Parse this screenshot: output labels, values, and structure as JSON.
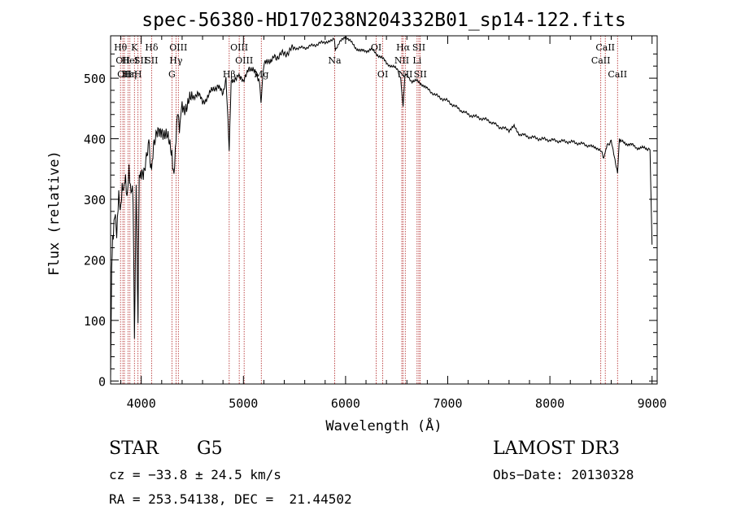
{
  "chart_data": {
    "type": "line",
    "title": "spec-56380-HD170238N204332B01_sp14-122.fits",
    "xlabel": "Wavelength (Å)",
    "ylabel": "Flux (relative)",
    "xlim": [
      3700,
      9050
    ],
    "ylim": [
      -5,
      570
    ],
    "x_ticks": [
      4000,
      5000,
      6000,
      7000,
      8000,
      9000
    ],
    "y_ticks": [
      0,
      100,
      200,
      300,
      400,
      500
    ],
    "grid": false,
    "series": [
      {
        "x": [
          3700,
          3710,
          3720,
          3740,
          3760,
          3780,
          3800,
          3820,
          3840,
          3860,
          3880,
          3900,
          3920,
          3933,
          3950,
          3968,
          3980,
          4000,
          4020,
          4050,
          4080,
          4101,
          4120,
          4150,
          4200,
          4250,
          4300,
          4320,
          4340,
          4360,
          4380,
          4400,
          4450,
          4500,
          4550,
          4600,
          4650,
          4700,
          4750,
          4800,
          4830,
          4861,
          4880,
          4900,
          4950,
          5000,
          5050,
          5100,
          5150,
          5172,
          5200,
          5250,
          5300,
          5400,
          5500,
          5600,
          5700,
          5800,
          5890,
          5900,
          5950,
          6000,
          6050,
          6100,
          6150,
          6200,
          6250,
          6300,
          6350,
          6400,
          6450,
          6500,
          6540,
          6563,
          6580,
          6600,
          6650,
          6700,
          6750,
          6800,
          6900,
          7000,
          7100,
          7200,
          7300,
          7400,
          7500,
          7600,
          7650,
          7700,
          7800,
          7900,
          8000,
          8100,
          8200,
          8300,
          8400,
          8498,
          8520,
          8542,
          8560,
          8600,
          8662,
          8680,
          8700,
          8750,
          8800,
          8850,
          8900,
          8950,
          8980,
          9000
        ],
        "values": [
          0,
          170,
          240,
          270,
          250,
          300,
          290,
          320,
          330,
          310,
          340,
          320,
          300,
          80,
          310,
          90,
          330,
          350,
          330,
          360,
          390,
          340,
          380,
          400,
          420,
          400,
          380,
          330,
          410,
          440,
          420,
          460,
          450,
          470,
          475,
          460,
          470,
          480,
          490,
          470,
          495,
          380,
          500,
          490,
          510,
          490,
          520,
          510,
          500,
          465,
          520,
          530,
          535,
          540,
          550,
          550,
          555,
          560,
          565,
          548,
          560,
          570,
          560,
          550,
          545,
          545,
          548,
          540,
          535,
          525,
          520,
          515,
          500,
          450,
          505,
          505,
          495,
          495,
          490,
          482,
          470,
          462,
          450,
          440,
          435,
          430,
          420,
          414,
          420,
          408,
          403,
          400,
          398,
          396,
          395,
          392,
          388,
          382,
          370,
          375,
          390,
          395,
          345,
          400,
          395,
          392,
          390,
          385,
          385,
          383,
          383,
          225
        ]
      }
    ],
    "line_labels": [
      {
        "x": 3797,
        "text": "Hθ",
        "row": 0
      },
      {
        "x": 3820,
        "text": "OII",
        "row": 1
      },
      {
        "x": 3835,
        "text": "OII",
        "row": 2
      },
      {
        "x": 3870,
        "text": "Hε",
        "row": 2
      },
      {
        "x": 3889,
        "text": "HeI",
        "row": 1
      },
      {
        "x": 3890,
        "text": "Hη",
        "row": 2
      },
      {
        "x": 3933,
        "text": "K",
        "row": 0
      },
      {
        "x": 3968,
        "text": "H",
        "row": 2
      },
      {
        "x": 3995,
        "text": "SII",
        "row": 1
      },
      {
        "x": 4101,
        "text": "Hδ",
        "row": 0
      },
      {
        "x": 4101,
        "text": "SII",
        "row": 1
      },
      {
        "x": 4300,
        "text": "G",
        "row": 2
      },
      {
        "x": 4340,
        "text": "Hγ",
        "row": 1
      },
      {
        "x": 4363,
        "text": "OIII",
        "row": 0
      },
      {
        "x": 4861,
        "text": "Hβ",
        "row": 2
      },
      {
        "x": 4959,
        "text": "OIII",
        "row": 0
      },
      {
        "x": 5007,
        "text": "OIII",
        "row": 1
      },
      {
        "x": 5175,
        "text": "Mg",
        "row": 2
      },
      {
        "x": 5893,
        "text": "Na",
        "row": 1
      },
      {
        "x": 6300,
        "text": "OI",
        "row": 0
      },
      {
        "x": 6364,
        "text": "OI",
        "row": 2
      },
      {
        "x": 6550,
        "text": "NII",
        "row": 1
      },
      {
        "x": 6563,
        "text": "Hα",
        "row": 0
      },
      {
        "x": 6584,
        "text": "NII",
        "row": 2
      },
      {
        "x": 6700,
        "text": "Li",
        "row": 1
      },
      {
        "x": 6717,
        "text": "SII",
        "row": 0
      },
      {
        "x": 6731,
        "text": "SII",
        "row": 2
      },
      {
        "x": 8498,
        "text": "CaII",
        "row": 1
      },
      {
        "x": 8542,
        "text": "CaII",
        "row": 0
      },
      {
        "x": 8662,
        "text": "CaII",
        "row": 2
      }
    ],
    "marker_lines": [
      3797,
      3820,
      3835,
      3870,
      3889,
      3933,
      3968,
      3995,
      4101,
      4300,
      4340,
      4363,
      4861,
      4959,
      5007,
      5175,
      5893,
      6300,
      6364,
      6550,
      6563,
      6584,
      6700,
      6717,
      6731,
      8498,
      8542,
      8662
    ],
    "colors": {
      "spectrum": "#000000",
      "markers": "#b02020"
    }
  },
  "info": {
    "object_type": "STAR",
    "subclass": "G5",
    "survey": "LAMOST DR3",
    "cz": "cz = −33.8 ± 24.5 km/s",
    "obs_date": "Obs−Date: 20130328",
    "coords": "RA = 253.54138, DEC =  21.44502"
  }
}
